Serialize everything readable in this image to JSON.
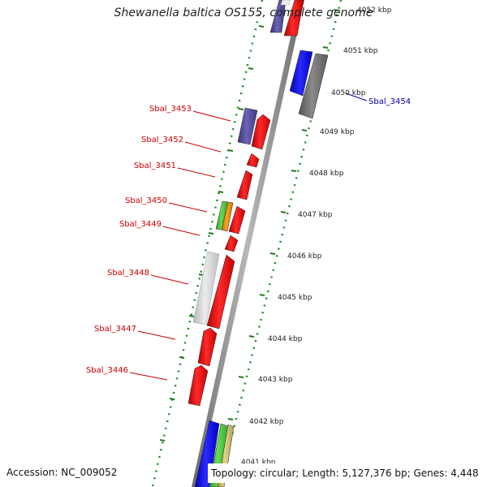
{
  "title": "Shewanella baltica OS155, complete genome",
  "accession_text": "Accession: NC_009052",
  "summary_text": "Topology: circular; Length: 5,127,376 bp; Genes: 4,448",
  "colors": {
    "backbone": "#888888",
    "tick": "#228B22",
    "forward_label": "#cc0000",
    "reverse_label": "#0000aa"
  },
  "kbp_labels": [
    {
      "name": "kbp-4052",
      "text": "4052 kbp"
    },
    {
      "name": "kbp-4051",
      "text": "4051 kbp"
    },
    {
      "name": "kbp-4050",
      "text": "4050 kbp"
    },
    {
      "name": "kbp-4049",
      "text": "4049 kbp"
    },
    {
      "name": "kbp-4048",
      "text": "4048 kbp"
    },
    {
      "name": "kbp-4047",
      "text": "4047 kbp"
    },
    {
      "name": "kbp-4046",
      "text": "4046 kbp"
    },
    {
      "name": "kbp-4045",
      "text": "4045 kbp"
    },
    {
      "name": "kbp-4044",
      "text": "4044 kbp"
    },
    {
      "name": "kbp-4043",
      "text": "4043 kbp"
    },
    {
      "name": "kbp-4042",
      "text": "4042 kbp"
    },
    {
      "name": "kbp-4041",
      "text": "4041 kbp"
    }
  ],
  "gene_labels": [
    {
      "name": "gene-label-sbal-3454",
      "text": "Sbal_3454",
      "strand": "reverse"
    },
    {
      "name": "gene-label-sbal-3453",
      "text": "Sbal_3453",
      "strand": "forward"
    },
    {
      "name": "gene-label-sbal-3452",
      "text": "Sbal_3452",
      "strand": "forward"
    },
    {
      "name": "gene-label-sbal-3451",
      "text": "Sbal_3451",
      "strand": "forward"
    },
    {
      "name": "gene-label-sbal-3450",
      "text": "Sbal_3450",
      "strand": "forward"
    },
    {
      "name": "gene-label-sbal-3449",
      "text": "Sbal_3449",
      "strand": "forward"
    },
    {
      "name": "gene-label-sbal-3448",
      "text": "Sbal_3448",
      "strand": "forward"
    },
    {
      "name": "gene-label-sbal-3447",
      "text": "Sbal_3447",
      "strand": "forward"
    },
    {
      "name": "gene-label-sbal-3446",
      "text": "Sbal_3446",
      "strand": "forward"
    }
  ]
}
